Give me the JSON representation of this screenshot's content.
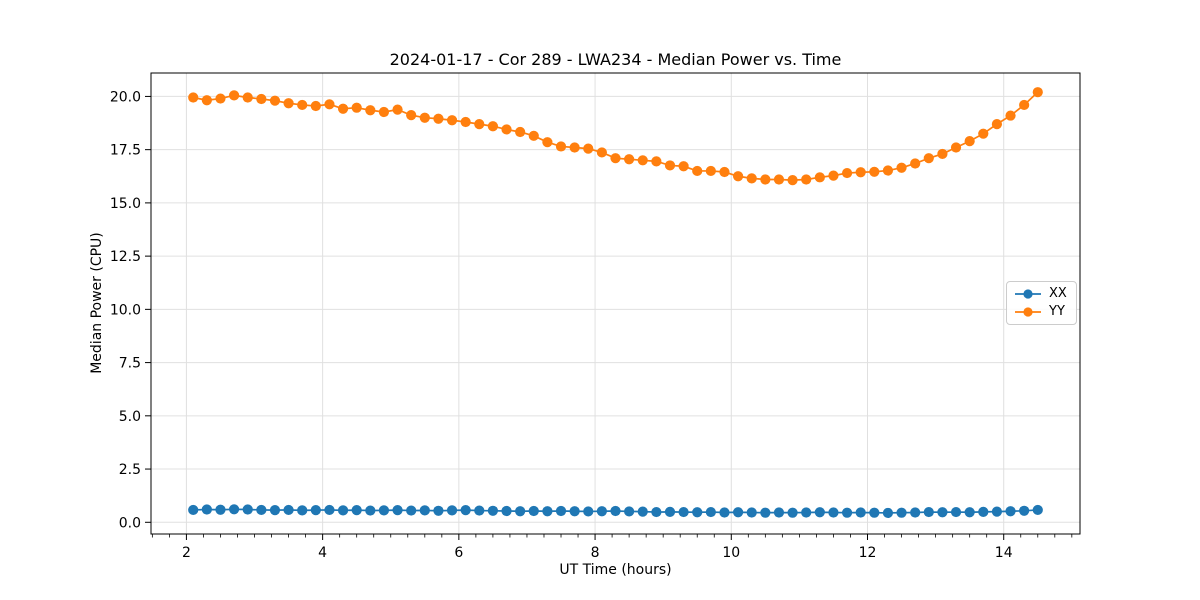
{
  "figure": {
    "background": "#ffffff"
  },
  "chart_data": {
    "type": "line",
    "title": "2024-01-17 - Cor 289 - LWA234 - Median Power vs. Time",
    "xlabel": "UT Time (hours)",
    "ylabel": "Median Power (CPU)",
    "xlim": [
      1.48,
      15.12
    ],
    "ylim": [
      -0.55,
      21.1
    ],
    "xticks": [
      2,
      4,
      6,
      8,
      10,
      12,
      14
    ],
    "xtick_labels": [
      "2",
      "4",
      "6",
      "8",
      "10",
      "12",
      "14"
    ],
    "yticks": [
      0,
      2.5,
      5,
      7.5,
      10,
      12.5,
      15,
      17.5,
      20
    ],
    "ytick_labels": [
      "0.0",
      "2.5",
      "5.0",
      "7.5",
      "10.0",
      "12.5",
      "15.0",
      "17.5",
      "20.0"
    ],
    "minor_xtick_step": 0.25,
    "grid": true,
    "grid_color": "#e0e0e0",
    "spine_color": "#000000",
    "legend_position": "center-right",
    "x": [
      2.1,
      2.3,
      2.5,
      2.7,
      2.9,
      3.1,
      3.3,
      3.5,
      3.7,
      3.9,
      4.1,
      4.3,
      4.5,
      4.7,
      4.9,
      5.1,
      5.3,
      5.5,
      5.7,
      5.9,
      6.1,
      6.3,
      6.5,
      6.7,
      6.9,
      7.1,
      7.3,
      7.5,
      7.7,
      7.9,
      8.1,
      8.3,
      8.5,
      8.7,
      8.9,
      9.1,
      9.3,
      9.5,
      9.7,
      9.9,
      10.1,
      10.3,
      10.5,
      10.7,
      10.9,
      11.1,
      11.3,
      11.5,
      11.7,
      11.9,
      12.1,
      12.3,
      12.5,
      12.7,
      12.9,
      13.1,
      13.3,
      13.5,
      13.7,
      13.9,
      14.1,
      14.3,
      14.5
    ],
    "series": [
      {
        "name": "XX",
        "color": "#1f77b4",
        "values": [
          0.58,
          0.6,
          0.59,
          0.61,
          0.6,
          0.58,
          0.57,
          0.58,
          0.56,
          0.57,
          0.58,
          0.56,
          0.57,
          0.55,
          0.56,
          0.57,
          0.55,
          0.56,
          0.54,
          0.56,
          0.57,
          0.55,
          0.54,
          0.53,
          0.52,
          0.53,
          0.52,
          0.53,
          0.52,
          0.51,
          0.52,
          0.53,
          0.51,
          0.5,
          0.48,
          0.49,
          0.48,
          0.47,
          0.48,
          0.46,
          0.47,
          0.46,
          0.45,
          0.46,
          0.45,
          0.46,
          0.47,
          0.46,
          0.45,
          0.46,
          0.45,
          0.44,
          0.45,
          0.46,
          0.48,
          0.47,
          0.48,
          0.47,
          0.49,
          0.5,
          0.52,
          0.54,
          0.58
        ]
      },
      {
        "name": "YY",
        "color": "#ff7f0e",
        "values": [
          19.95,
          19.82,
          19.9,
          20.05,
          19.95,
          19.88,
          19.8,
          19.68,
          19.6,
          19.55,
          19.63,
          19.42,
          19.47,
          19.35,
          19.27,
          19.38,
          19.12,
          19.0,
          18.95,
          18.88,
          18.8,
          18.7,
          18.6,
          18.45,
          18.33,
          18.15,
          17.85,
          17.65,
          17.6,
          17.55,
          17.37,
          17.1,
          17.05,
          17.0,
          16.95,
          16.76,
          16.72,
          16.5,
          16.5,
          16.45,
          16.25,
          16.15,
          16.1,
          16.1,
          16.07,
          16.1,
          16.2,
          16.28,
          16.4,
          16.44,
          16.46,
          16.52,
          16.65,
          16.85,
          17.1,
          17.3,
          17.6,
          17.9,
          18.25,
          18.7,
          19.1,
          19.6,
          20.2
        ]
      }
    ]
  }
}
